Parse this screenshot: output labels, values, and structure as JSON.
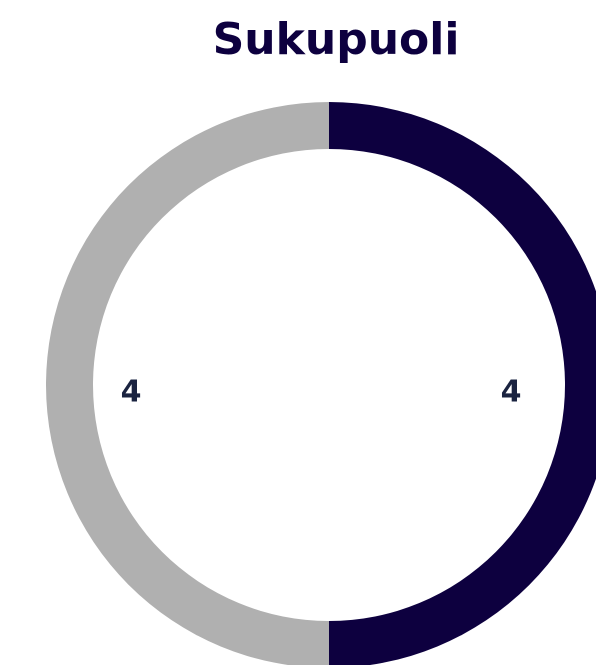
{
  "chart_data": {
    "type": "donut",
    "title": "Sukupuoli",
    "values": [
      4,
      4
    ],
    "colors": [
      "#0d003f",
      "#b0b0b0"
    ]
  }
}
